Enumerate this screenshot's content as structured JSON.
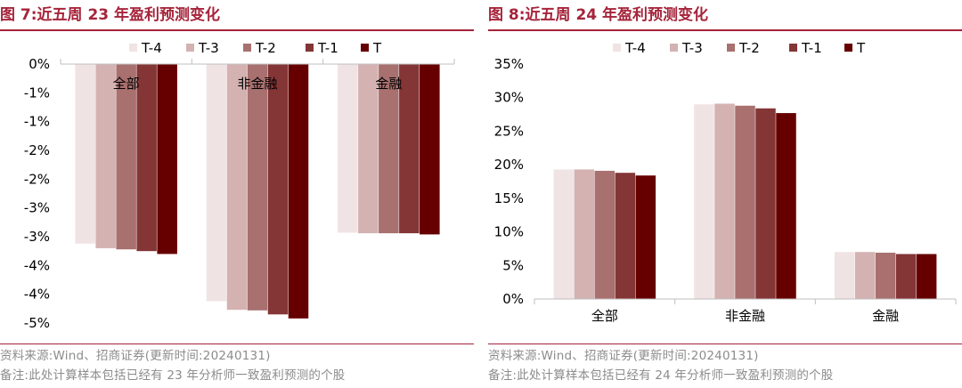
{
  "colors": {
    "title": "#a6243a",
    "series": [
      "#f0e3e3",
      "#d4b2b2",
      "#a8706f",
      "#843536",
      "#660000"
    ]
  },
  "charts": [
    {
      "title": "图 7:近五周 23 年盈利预测变化",
      "source": "资料来源:Wind、招商证券(更新时间:20240131)",
      "note": "备注:此处计算样本包括已经有 23 年分析师一致盈利预测的个股",
      "chart_data": {
        "type": "bar",
        "categories": [
          "全部",
          "非金融",
          "金融"
        ],
        "series": [
          {
            "name": "T-4",
            "values": [
              -3.12,
              -4.12,
              -2.93
            ]
          },
          {
            "name": "T-3",
            "values": [
              -3.2,
              -4.27,
              -2.94
            ]
          },
          {
            "name": "T-2",
            "values": [
              -3.22,
              -4.28,
              -2.94
            ]
          },
          {
            "name": "T-1",
            "values": [
              -3.25,
              -4.35,
              -2.94
            ]
          },
          {
            "name": "T",
            "values": [
              -3.3,
              -4.42,
              -2.96
            ]
          }
        ],
        "ylim": [
          -4.5,
          0
        ],
        "yticks": [
          0,
          -0.5,
          -1,
          -1.5,
          -2,
          -2.5,
          -3,
          -3.5,
          -4,
          -4.5
        ],
        "ytick_labels": [
          "0%",
          "-1%",
          "-1%",
          "-2%",
          "-2%",
          "-3%",
          "-3%",
          "-4%",
          "-4%",
          "-5%"
        ],
        "category_labels_position": "top",
        "legend": "top",
        "grid": false
      }
    },
    {
      "title": "图 8:近五周 24 年盈利预测变化",
      "source": "资料来源:Wind、招商证券(更新时间:20240131)",
      "note": "备注:此处计算样本包括已经有 24 年分析师一致盈利预测的个股",
      "chart_data": {
        "type": "bar",
        "categories": [
          "全部",
          "非金融",
          "金融"
        ],
        "series": [
          {
            "name": "T-4",
            "values": [
              19.3,
              29.0,
              7.0
            ]
          },
          {
            "name": "T-3",
            "values": [
              19.3,
              29.1,
              7.0
            ]
          },
          {
            "name": "T-2",
            "values": [
              19.1,
              28.8,
              6.9
            ]
          },
          {
            "name": "T-1",
            "values": [
              18.8,
              28.4,
              6.7
            ]
          },
          {
            "name": "T",
            "values": [
              18.4,
              27.7,
              6.7
            ]
          }
        ],
        "ylim": [
          0,
          35
        ],
        "yticks": [
          0,
          5,
          10,
          15,
          20,
          25,
          30,
          35
        ],
        "ytick_labels": [
          "0%",
          "5%",
          "10%",
          "15%",
          "20%",
          "25%",
          "30%",
          "35%"
        ],
        "category_labels_position": "bottom",
        "legend": "top",
        "grid": false
      }
    }
  ]
}
